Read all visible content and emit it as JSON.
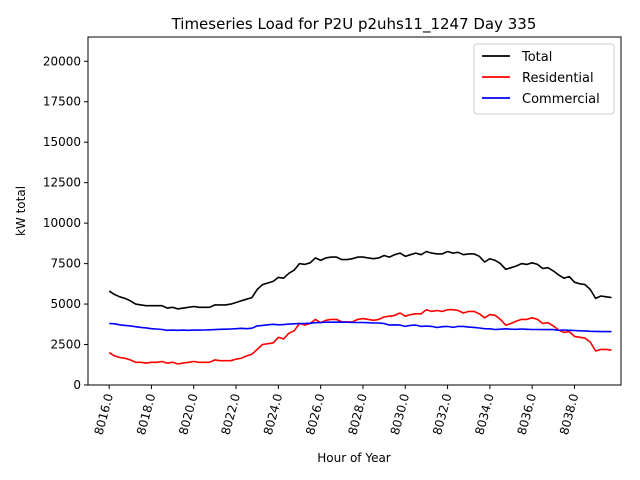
{
  "chart_data": {
    "type": "line",
    "title": "Timeseries Load for P2U p2uhs11_1247  Day 335",
    "xlabel": "Hour of Year",
    "ylabel": "kW total",
    "xlim": [
      8015.0,
      8040.2
    ],
    "ylim": [
      0,
      21500
    ],
    "xticks": [
      8016,
      8018,
      8020,
      8022,
      8024,
      8026,
      8028,
      8030,
      8032,
      8034,
      8036,
      8038
    ],
    "xtick_labels": [
      "8016.0",
      "8018.0",
      "8020.0",
      "8022.0",
      "8024.0",
      "8026.0",
      "8028.0",
      "8030.0",
      "8032.0",
      "8034.0",
      "8036.0",
      "8038.0"
    ],
    "yticks": [
      0,
      2500,
      5000,
      7500,
      10000,
      12500,
      15000,
      17500,
      20000
    ],
    "ytick_labels": [
      "0",
      "2500",
      "5000",
      "7500",
      "10000",
      "12500",
      "15000",
      "17500",
      "20000"
    ],
    "legend_position": "top-right",
    "x_start": 8016.0,
    "x_step": 0.25,
    "series": [
      {
        "name": "Total",
        "color": "#000000",
        "values": [
          5800,
          5600,
          5450,
          5350,
          5200,
          5000,
          4950,
          4900,
          4900,
          4900,
          4900,
          4750,
          4800,
          4700,
          4750,
          4800,
          4850,
          4800,
          4800,
          4800,
          4950,
          4950,
          4950,
          5000,
          5100,
          5200,
          5300,
          5400,
          5900,
          6200,
          6300,
          6400,
          6650,
          6600,
          6900,
          7100,
          7500,
          7450,
          7550,
          7850,
          7700,
          7850,
          7900,
          7900,
          7750,
          7750,
          7800,
          7900,
          7900,
          7850,
          7800,
          7850,
          8000,
          7900,
          8050,
          8150,
          7950,
          8050,
          8150,
          8050,
          8250,
          8150,
          8100,
          8100,
          8250,
          8150,
          8200,
          8050,
          8100,
          8100,
          7950,
          7600,
          7800,
          7700,
          7500,
          7150,
          7250,
          7350,
          7500,
          7450,
          7550,
          7450,
          7200,
          7250,
          7050,
          6800,
          6600,
          6700,
          6350,
          6250,
          6200,
          5900,
          5350,
          5500,
          5450,
          5400
        ]
      },
      {
        "name": "Residential",
        "color": "#ff0000",
        "values": [
          2000,
          1800,
          1700,
          1650,
          1550,
          1400,
          1400,
          1350,
          1400,
          1400,
          1450,
          1350,
          1400,
          1300,
          1350,
          1400,
          1450,
          1400,
          1400,
          1400,
          1550,
          1500,
          1500,
          1500,
          1600,
          1650,
          1800,
          1900,
          2200,
          2500,
          2550,
          2600,
          2950,
          2850,
          3200,
          3350,
          3800,
          3700,
          3800,
          4050,
          3850,
          4000,
          4050,
          4050,
          3900,
          3900,
          3900,
          4050,
          4100,
          4050,
          4000,
          4050,
          4200,
          4250,
          4300,
          4450,
          4250,
          4350,
          4400,
          4400,
          4650,
          4550,
          4600,
          4550,
          4650,
          4650,
          4600,
          4450,
          4550,
          4550,
          4400,
          4150,
          4350,
          4300,
          4050,
          3700,
          3800,
          3950,
          4050,
          4050,
          4150,
          4050,
          3800,
          3850,
          3650,
          3400,
          3250,
          3300,
          3000,
          2950,
          2900,
          2650,
          2100,
          2200,
          2200,
          2150
        ]
      },
      {
        "name": "Commercial",
        "color": "#0000ff",
        "values": [
          3800,
          3780,
          3720,
          3680,
          3650,
          3600,
          3560,
          3530,
          3480,
          3460,
          3430,
          3380,
          3390,
          3380,
          3390,
          3380,
          3390,
          3390,
          3400,
          3410,
          3420,
          3440,
          3450,
          3460,
          3480,
          3500,
          3480,
          3510,
          3650,
          3680,
          3720,
          3750,
          3720,
          3730,
          3760,
          3780,
          3800,
          3800,
          3820,
          3850,
          3860,
          3880,
          3880,
          3880,
          3880,
          3880,
          3870,
          3860,
          3860,
          3850,
          3830,
          3830,
          3800,
          3700,
          3720,
          3700,
          3620,
          3680,
          3700,
          3620,
          3640,
          3620,
          3550,
          3600,
          3620,
          3560,
          3620,
          3620,
          3580,
          3560,
          3520,
          3480,
          3470,
          3430,
          3450,
          3470,
          3450,
          3440,
          3460,
          3440,
          3430,
          3430,
          3420,
          3420,
          3420,
          3380,
          3400,
          3380,
          3370,
          3350,
          3340,
          3320,
          3310,
          3300,
          3300,
          3300
        ]
      }
    ]
  }
}
